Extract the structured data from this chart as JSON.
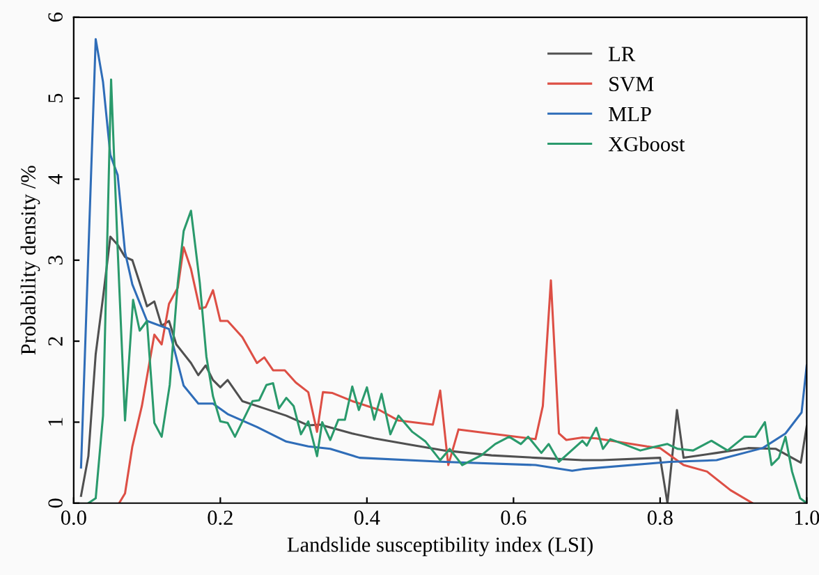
{
  "chart_data": {
    "type": "line",
    "xlabel": "Landslide susceptibility index (LSI)",
    "ylabel": "Probability density /%",
    "xlim": [
      0,
      1
    ],
    "ylim": [
      0,
      6
    ],
    "xticks": [
      {
        "value": 0,
        "label": "0.0"
      },
      0.2,
      0.4,
      0.6,
      0.8,
      {
        "value": 1,
        "label": "1.0"
      }
    ],
    "yticks": [
      0,
      1,
      2,
      3,
      4,
      5,
      6
    ],
    "grid": false,
    "legend": "top right",
    "marker": "none",
    "line_style": "solid",
    "series": [
      {
        "name": "LR",
        "color": "#505050",
        "x": [
          0.01,
          0.02,
          0.03,
          0.04,
          0.05,
          0.06,
          0.07,
          0.08,
          0.09,
          0.1,
          0.11,
          0.12,
          0.13,
          0.14,
          0.16,
          0.17,
          0.18,
          0.19,
          0.2,
          0.21,
          0.23,
          0.26,
          0.29,
          0.32,
          0.336,
          0.38,
          0.41,
          0.46,
          0.506,
          0.57,
          0.63,
          0.694,
          0.72,
          0.8,
          0.81,
          0.823,
          0.832,
          0.877,
          0.92,
          0.958,
          0.992,
          1.0
        ],
        "values": [
          0.09,
          0.58,
          1.84,
          2.54,
          3.29,
          3.19,
          3.04,
          3.0,
          2.72,
          2.43,
          2.49,
          2.19,
          2.25,
          1.96,
          1.73,
          1.58,
          1.7,
          1.52,
          1.43,
          1.52,
          1.26,
          1.17,
          1.08,
          0.96,
          0.97,
          0.86,
          0.8,
          0.72,
          0.65,
          0.59,
          0.56,
          0.53,
          0.53,
          0.56,
          0.0,
          1.15,
          0.56,
          0.62,
          0.68,
          0.67,
          0.5,
          0.95
        ]
      },
      {
        "name": "SVM",
        "color": "#dd4f45",
        "x": [
          0.062,
          0.07,
          0.08,
          0.093,
          0.11,
          0.12,
          0.13,
          0.142,
          0.15,
          0.16,
          0.172,
          0.18,
          0.19,
          0.2,
          0.21,
          0.23,
          0.25,
          0.26,
          0.272,
          0.288,
          0.303,
          0.32,
          0.332,
          0.34,
          0.353,
          0.38,
          0.417,
          0.443,
          0.49,
          0.5,
          0.511,
          0.525,
          0.568,
          0.63,
          0.64,
          0.651,
          0.662,
          0.672,
          0.694,
          0.713,
          0.782,
          0.8,
          0.832,
          0.864,
          0.896,
          0.926
        ],
        "values": [
          0,
          0.12,
          0.7,
          1.2,
          2.08,
          1.96,
          2.46,
          2.66,
          3.16,
          2.89,
          2.4,
          2.42,
          2.63,
          2.25,
          2.25,
          2.05,
          1.73,
          1.8,
          1.64,
          1.64,
          1.49,
          1.37,
          0.88,
          1.37,
          1.36,
          1.26,
          1.15,
          1.02,
          0.97,
          1.39,
          0.47,
          0.91,
          0.86,
          0.79,
          1.2,
          2.75,
          0.86,
          0.78,
          0.81,
          0.8,
          0.7,
          0.68,
          0.47,
          0.39,
          0.16,
          0.0
        ]
      },
      {
        "name": "MLP",
        "color": "#2f6db8",
        "x": [
          0.01,
          0.03,
          0.04,
          0.05,
          0.06,
          0.07,
          0.08,
          0.1,
          0.13,
          0.15,
          0.17,
          0.19,
          0.21,
          0.25,
          0.29,
          0.32,
          0.35,
          0.39,
          0.506,
          0.63,
          0.68,
          0.694,
          0.813,
          0.877,
          0.94,
          0.971,
          0.993,
          1.0
        ],
        "values": [
          0.44,
          5.73,
          5.2,
          4.3,
          4.05,
          3.1,
          2.7,
          2.25,
          2.15,
          1.45,
          1.23,
          1.23,
          1.1,
          0.94,
          0.76,
          0.7,
          0.67,
          0.56,
          0.51,
          0.47,
          0.4,
          0.42,
          0.51,
          0.53,
          0.68,
          0.86,
          1.12,
          1.7
        ]
      },
      {
        "name": "XGboost",
        "color": "#2a9a6c",
        "x": [
          0.02,
          0.03,
          0.04,
          0.051,
          0.06,
          0.07,
          0.081,
          0.09,
          0.1,
          0.11,
          0.12,
          0.131,
          0.142,
          0.15,
          0.16,
          0.172,
          0.181,
          0.19,
          0.2,
          0.21,
          0.22,
          0.244,
          0.253,
          0.263,
          0.272,
          0.28,
          0.29,
          0.3,
          0.31,
          0.32,
          0.332,
          0.339,
          0.35,
          0.361,
          0.37,
          0.38,
          0.389,
          0.4,
          0.41,
          0.42,
          0.432,
          0.443,
          0.462,
          0.48,
          0.5,
          0.513,
          0.53,
          0.556,
          0.575,
          0.594,
          0.61,
          0.62,
          0.638,
          0.648,
          0.662,
          0.694,
          0.7,
          0.713,
          0.722,
          0.732,
          0.75,
          0.773,
          0.79,
          0.81,
          0.824,
          0.845,
          0.87,
          0.892,
          0.915,
          0.93,
          0.943,
          0.952,
          0.962,
          0.971,
          0.98,
          0.991,
          1.0
        ],
        "values": [
          0,
          0.06,
          1.08,
          5.23,
          3.13,
          1.02,
          2.51,
          2.13,
          2.25,
          0.99,
          0.82,
          1.46,
          2.72,
          3.36,
          3.61,
          2.72,
          1.81,
          1.32,
          1.01,
          0.99,
          0.82,
          1.26,
          1.27,
          1.46,
          1.48,
          1.17,
          1.3,
          1.2,
          0.85,
          1.01,
          0.58,
          1.0,
          0.78,
          1.03,
          1.03,
          1.44,
          1.15,
          1.43,
          1.03,
          1.35,
          0.85,
          1.08,
          0.88,
          0.76,
          0.53,
          0.67,
          0.47,
          0.59,
          0.73,
          0.82,
          0.73,
          0.82,
          0.62,
          0.73,
          0.51,
          0.77,
          0.71,
          0.93,
          0.67,
          0.79,
          0.73,
          0.65,
          0.69,
          0.73,
          0.67,
          0.65,
          0.77,
          0.65,
          0.82,
          0.82,
          1.0,
          0.47,
          0.56,
          0.82,
          0.39,
          0.06,
          0
        ]
      }
    ]
  }
}
